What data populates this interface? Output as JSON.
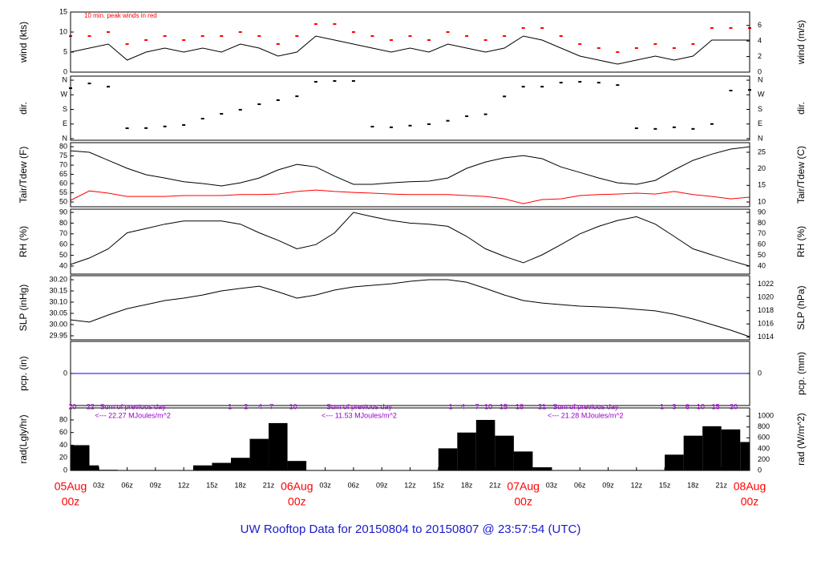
{
  "time": {
    "x": [
      0,
      2,
      4,
      6,
      8,
      10,
      12,
      14,
      16,
      18,
      20,
      22,
      24,
      26,
      28,
      30,
      32,
      34,
      36,
      38,
      40,
      42,
      44,
      46,
      48,
      50,
      52,
      54,
      56,
      58,
      60,
      62,
      64,
      66,
      68,
      70,
      72
    ],
    "xlim": [
      0,
      72
    ],
    "xticks": [
      {
        "value": 3,
        "label": "03z"
      },
      {
        "value": 6,
        "label": "06z"
      },
      {
        "value": 9,
        "label": "09z"
      },
      {
        "value": 12,
        "label": "12z"
      },
      {
        "value": 15,
        "label": "15z"
      },
      {
        "value": 18,
        "label": "18z"
      },
      {
        "value": 21,
        "label": "21z"
      },
      {
        "value": 27,
        "label": "03z"
      },
      {
        "value": 30,
        "label": "06z"
      },
      {
        "value": 33,
        "label": "09z"
      },
      {
        "value": 36,
        "label": "12z"
      },
      {
        "value": 39,
        "label": "15z"
      },
      {
        "value": 42,
        "label": "18z"
      },
      {
        "value": 45,
        "label": "21z"
      },
      {
        "value": 51,
        "label": "03z"
      },
      {
        "value": 54,
        "label": "06z"
      },
      {
        "value": 57,
        "label": "09z"
      },
      {
        "value": 60,
        "label": "12z"
      },
      {
        "value": 63,
        "label": "15z"
      },
      {
        "value": 66,
        "label": "18z"
      },
      {
        "value": 69,
        "label": "21z"
      }
    ],
    "date_ticks": [
      {
        "value": 0,
        "label": "05Aug"
      },
      {
        "value": 24,
        "label": "06Aug"
      },
      {
        "value": 48,
        "label": "07Aug"
      },
      {
        "value": 72,
        "label": "08Aug"
      }
    ],
    "date_hour_label": "00z",
    "footer": "UW Rooftop Data for 20150804  to  20150807 @ 23:57:54  (UTC)"
  },
  "chart_data": [
    {
      "type": "line",
      "ylabel": "wind (kts)",
      "y2label": "wind (m/s)",
      "ylim": [
        0,
        15
      ],
      "yticks": [
        0,
        5,
        10,
        15
      ],
      "y2lim": [
        0,
        7.72
      ],
      "y2ticks": [
        0,
        2,
        4,
        6
      ],
      "annotation": "10 min. peak winds in red",
      "series": [
        {
          "type": "line",
          "color": "#000000",
          "values": [
            5,
            6,
            7,
            3,
            5,
            6,
            5,
            6,
            5,
            7,
            6,
            4,
            5,
            9,
            8,
            7,
            6,
            5,
            6,
            5,
            7,
            6,
            5,
            6,
            9,
            8,
            6,
            4,
            3,
            2,
            3,
            4,
            3,
            4,
            8,
            8,
            8
          ]
        },
        {
          "type": "scatter",
          "color": "#ff0000",
          "values": [
            9,
            9,
            10,
            7,
            8,
            9,
            8,
            9,
            9,
            10,
            9,
            7,
            9,
            12,
            12,
            10,
            9,
            8,
            9,
            8,
            10,
            9,
            8,
            9,
            11,
            11,
            9,
            7,
            6,
            5,
            6,
            7,
            6,
            7,
            11,
            11,
            11
          ]
        }
      ]
    },
    {
      "type": "scatter",
      "ylabel": "dir.",
      "y2label": "dir.",
      "ylim": [
        -10,
        385
      ],
      "yticks": [
        {
          "value": 0,
          "label": "N"
        },
        {
          "value": 90,
          "label": "E"
        },
        {
          "value": 180,
          "label": "S"
        },
        {
          "value": 270,
          "label": "W"
        },
        {
          "value": 360,
          "label": "N"
        }
      ],
      "y2lim": [
        -10,
        385
      ],
      "y2ticks": [
        {
          "value": 0,
          "label": "N"
        },
        {
          "value": 90,
          "label": "E"
        },
        {
          "value": 180,
          "label": "S"
        },
        {
          "value": 270,
          "label": "W"
        },
        {
          "value": 360,
          "label": "N"
        }
      ],
      "series": [
        {
          "type": "scatter",
          "color": "#000000",
          "values": [
            311,
            340,
            320,
            64,
            65,
            75,
            84,
            123,
            153,
            178,
            212,
            237,
            261,
            350,
            355,
            355,
            74,
            70,
            80,
            89,
            110,
            138,
            150,
            260,
            320,
            320,
            345,
            350,
            345,
            330,
            64,
            60,
            70,
            60,
            90,
            296,
            300
          ]
        }
      ]
    },
    {
      "type": "line",
      "ylabel": "Tair/Tdew (F)",
      "y2label": "Tair/Tdew (C)",
      "ylim": [
        47.4,
        82.2
      ],
      "yticks": [
        50,
        55,
        60,
        65,
        70,
        75,
        80
      ],
      "y2lim": [
        8.56,
        27.89
      ],
      "y2ticks": [
        10,
        15,
        20,
        25
      ],
      "series": [
        {
          "type": "line",
          "color": "#000000",
          "values": [
            77.8,
            77,
            72.6,
            68.3,
            64.8,
            63,
            61,
            60,
            58.7,
            60.4,
            63,
            67.4,
            70.4,
            69,
            64,
            59.6,
            59.6,
            60.4,
            61,
            61.3,
            63,
            68.3,
            71.7,
            74,
            75.2,
            73.5,
            69,
            66,
            63,
            60.4,
            59.6,
            61.7,
            67.4,
            72.6,
            76,
            78.7,
            80
          ]
        },
        {
          "type": "line",
          "color": "#ff0000",
          "values": [
            50.9,
            56,
            54.8,
            53,
            53,
            53,
            53.5,
            53.5,
            53.5,
            54,
            54,
            54.3,
            55.7,
            56.5,
            55.7,
            55.2,
            54.8,
            54.3,
            54,
            54,
            54,
            53.5,
            53,
            51.7,
            49.1,
            51.3,
            51.7,
            53.5,
            54,
            54.3,
            54.8,
            54.3,
            55.7,
            54,
            53,
            51.7,
            52.6
          ]
        }
      ]
    },
    {
      "type": "line",
      "ylabel": "RH (%)",
      "y2label": "RH (%)",
      "ylim": [
        32.5,
        93
      ],
      "yticks": [
        40,
        50,
        60,
        70,
        80,
        90
      ],
      "y2lim": [
        32.5,
        93
      ],
      "y2ticks": [
        40,
        50,
        60,
        70,
        80,
        90
      ],
      "series": [
        {
          "type": "line",
          "color": "#000000",
          "values": [
            41.5,
            47.5,
            56,
            71,
            75,
            79,
            82,
            82,
            82,
            79,
            71,
            64,
            56,
            60,
            71,
            90,
            86,
            82.5,
            80,
            79,
            77,
            67.6,
            56,
            49,
            43,
            50.4,
            60,
            70,
            77,
            82.5,
            86,
            79,
            67.6,
            56,
            50.4,
            45,
            40
          ]
        }
      ]
    },
    {
      "type": "line",
      "ylabel": "SLP (inHg)",
      "y2label": "SLP (hPa)",
      "ylim": [
        29.932,
        30.218
      ],
      "yticks": [
        29.95,
        {
          "value": 30,
          "label": "30.00"
        },
        30.05,
        {
          "value": 30.1,
          "label": "30.10"
        },
        30.15,
        {
          "value": 30.2,
          "label": "30.20"
        }
      ],
      "y2lim": [
        1013.6,
        1023.3
      ],
      "y2ticks": [
        1014,
        1016,
        1018,
        1020,
        1022
      ],
      "series": [
        {
          "type": "line",
          "color": "#000000",
          "values": [
            30.021,
            30.011,
            30.043,
            30.071,
            30.089,
            30.107,
            30.118,
            30.132,
            30.15,
            30.161,
            30.171,
            30.146,
            30.118,
            30.132,
            30.154,
            30.168,
            30.175,
            30.182,
            30.193,
            30.2,
            30.2,
            30.189,
            30.161,
            30.132,
            30.107,
            30.096,
            30.089,
            30.082,
            30.079,
            30.075,
            30.068,
            30.061,
            30.046,
            30.025,
            30.0,
            29.975,
            29.946
          ]
        }
      ]
    },
    {
      "type": "line",
      "ylabel": "pcp. (in)",
      "y2label": "pcp. (mm)",
      "ylim": [
        -1,
        1
      ],
      "yticks": [
        0
      ],
      "y2lim": [
        -1,
        1
      ],
      "y2ticks": [
        0
      ],
      "x": [
        0,
        72
      ],
      "series": [
        {
          "type": "line",
          "color": "#0000ff",
          "values": [
            0,
            0
          ]
        }
      ]
    },
    {
      "type": "bar",
      "ylabel": "rad(Lgly/hr)",
      "y2label": "rad (W/m^2)",
      "ylim": [
        0,
        99
      ],
      "yticks": [
        0,
        20,
        40,
        60,
        80
      ],
      "y2lim": [
        0,
        1151
      ],
      "y2ticks": [
        0,
        200,
        400,
        600,
        800,
        1000
      ],
      "hour_marks": [
        {
          "value": 0.2,
          "label": "20"
        },
        {
          "value": 2.1,
          "label": "22"
        },
        {
          "value": 16.9,
          "label": "1"
        },
        {
          "value": 18.6,
          "label": "2"
        },
        {
          "value": 20.1,
          "label": "4"
        },
        {
          "value": 21.3,
          "label": "7"
        },
        {
          "value": 23.6,
          "label": "10"
        },
        {
          "value": 40.3,
          "label": "1"
        },
        {
          "value": 41.6,
          "label": "4"
        },
        {
          "value": 43.1,
          "label": "7"
        },
        {
          "value": 44.3,
          "label": "10"
        },
        {
          "value": 45.9,
          "label": "15"
        },
        {
          "value": 47.6,
          "label": "18"
        },
        {
          "value": 50,
          "label": "21"
        },
        {
          "value": 62.7,
          "label": "1"
        },
        {
          "value": 64,
          "label": "3"
        },
        {
          "value": 65.4,
          "label": "6"
        },
        {
          "value": 66.8,
          "label": "10"
        },
        {
          "value": 68.4,
          "label": "15"
        },
        {
          "value": 70.3,
          "label": "20"
        }
      ],
      "daily_sums": [
        {
          "label": "Sum of previous day",
          "total": "<--- 22.27 MJoules/m^2"
        },
        {
          "label": "Sum of previous day",
          "total": "<--- 11.53 MJoules/m^2"
        },
        {
          "label": "Sum of previous day",
          "total": "<--- 21.28 MJoules/m^2"
        }
      ],
      "series": [
        {
          "type": "bar",
          "color": "#000000",
          "values": [
            40,
            8,
            1,
            0,
            0,
            0,
            0,
            8,
            12,
            20,
            50,
            75,
            15,
            0,
            0,
            0,
            0,
            0,
            0,
            0,
            35,
            60,
            80,
            55,
            30,
            5,
            0,
            0,
            0,
            0,
            0,
            0,
            25,
            55,
            70,
            65,
            45
          ]
        }
      ]
    }
  ]
}
